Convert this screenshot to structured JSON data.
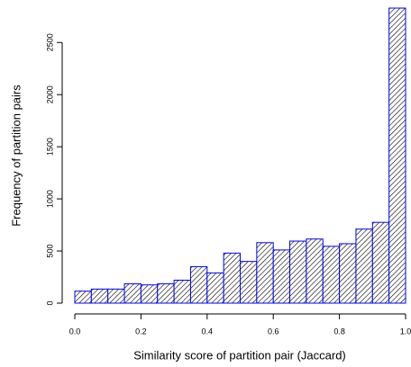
{
  "chart_data": {
    "type": "histogram",
    "xlabel": "Similarity score of partition pair (Jaccard)",
    "ylabel": "Frequency of partition pairs",
    "bins": [
      0,
      0.05,
      0.1,
      0.15,
      0.2,
      0.25,
      0.3,
      0.35,
      0.4,
      0.45,
      0.5,
      0.55,
      0.6,
      0.65,
      0.7,
      0.75,
      0.8,
      0.85,
      0.9,
      0.95,
      1.0
    ],
    "values": [
      115,
      135,
      135,
      185,
      175,
      185,
      220,
      350,
      290,
      480,
      400,
      580,
      510,
      595,
      615,
      545,
      570,
      710,
      775,
      2830
    ],
    "color": "#000000",
    "edgecolor": "#0000ff",
    "xlim": [
      0,
      1
    ],
    "ylim": [
      0,
      2830
    ],
    "xticks": [
      {
        "value": 0,
        "label": "0.0"
      },
      0.2,
      0.4,
      0.6,
      0.8,
      {
        "value": 1,
        "label": "1.0"
      }
    ],
    "yticks": [
      0,
      500,
      1000,
      1500,
      2000,
      2500
    ]
  }
}
